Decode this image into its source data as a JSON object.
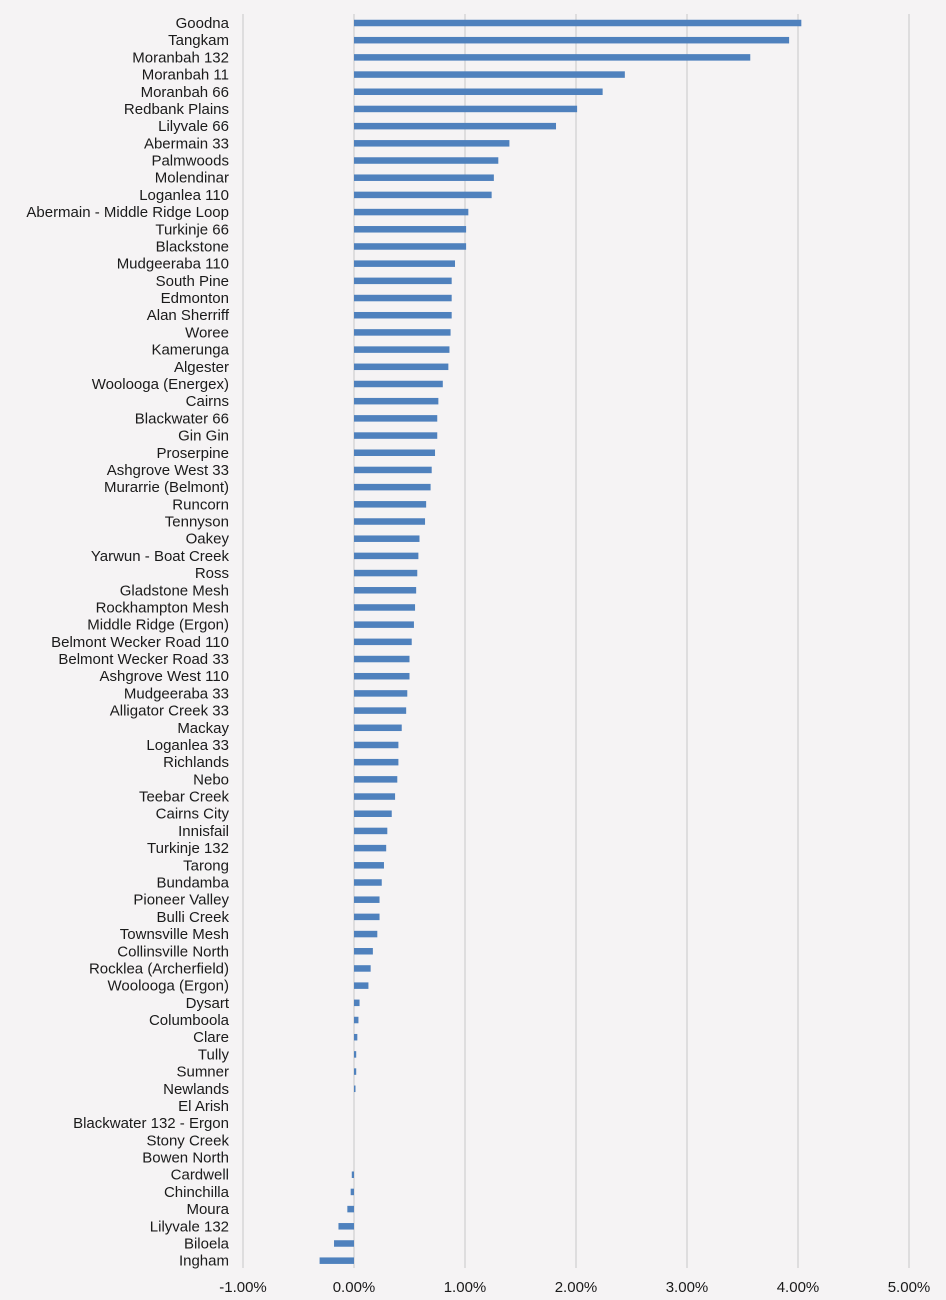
{
  "chart_data": {
    "type": "bar",
    "orientation": "horizontal",
    "title": "",
    "xlabel": "",
    "ylabel": "",
    "xlim": [
      -0.01,
      0.05
    ],
    "grid": true,
    "x_ticks": [
      -0.01,
      0.0,
      0.01,
      0.02,
      0.03,
      0.04,
      0.05
    ],
    "x_tick_labels": [
      "-1.00%",
      "0.00%",
      "1.00%",
      "2.00%",
      "3.00%",
      "4.00%",
      "5.00%"
    ],
    "categories": [
      "Goodna",
      "Tangkam",
      "Moranbah 132",
      "Moranbah 11",
      "Moranbah 66",
      "Redbank Plains",
      "Lilyvale 66",
      "Abermain 33",
      "Palmwoods",
      "Molendinar",
      "Loganlea 110",
      "Abermain - Middle Ridge Loop",
      "Turkinje 66",
      "Blackstone",
      "Mudgeeraba 110",
      "South Pine",
      "Edmonton",
      "Alan Sherriff",
      "Woree",
      "Kamerunga",
      "Algester",
      "Woolooga (Energex)",
      "Cairns",
      "Blackwater 66",
      "Gin Gin",
      "Proserpine",
      "Ashgrove West 33",
      "Murarrie (Belmont)",
      "Runcorn",
      "Tennyson",
      "Oakey",
      "Yarwun - Boat Creek",
      "Ross",
      "Gladstone Mesh",
      "Rockhampton Mesh",
      "Middle Ridge (Ergon)",
      "Belmont Wecker Road 110",
      "Belmont Wecker Road 33",
      "Ashgrove West 110",
      "Mudgeeraba 33",
      "Alligator Creek 33",
      "Mackay",
      "Loganlea 33",
      "Richlands",
      "Nebo",
      "Teebar Creek",
      "Cairns City",
      "Innisfail",
      "Turkinje 132",
      "Tarong",
      "Bundamba",
      "Pioneer Valley",
      "Bulli Creek",
      "Townsville Mesh",
      "Collinsville North",
      "Rocklea (Archerfield)",
      "Woolooga (Ergon)",
      "Dysart",
      "Columboola",
      "Clare",
      "Tully",
      "Sumner",
      "Newlands",
      "El Arish",
      "Blackwater 132 - Ergon",
      "Stony Creek",
      "Bowen North",
      "Cardwell",
      "Chinchilla",
      "Moura",
      "Lilyvale 132",
      "Biloela",
      "Ingham"
    ],
    "values": [
      0.0403,
      0.0392,
      0.0357,
      0.0244,
      0.0224,
      0.0201,
      0.0182,
      0.014,
      0.013,
      0.0126,
      0.0124,
      0.0103,
      0.0101,
      0.0101,
      0.0091,
      0.0088,
      0.0088,
      0.0088,
      0.0087,
      0.0086,
      0.0085,
      0.008,
      0.0076,
      0.0075,
      0.0075,
      0.0073,
      0.007,
      0.0069,
      0.0065,
      0.0064,
      0.0059,
      0.0058,
      0.0057,
      0.0056,
      0.0055,
      0.0054,
      0.0052,
      0.005,
      0.005,
      0.0048,
      0.0047,
      0.0043,
      0.004,
      0.004,
      0.0039,
      0.0037,
      0.0034,
      0.003,
      0.0029,
      0.0027,
      0.0025,
      0.0023,
      0.0023,
      0.0021,
      0.0017,
      0.0015,
      0.0013,
      0.0005,
      0.0004,
      0.0003,
      0.0002,
      0.0002,
      0.0001,
      0.0,
      0.0,
      0.0,
      0.0,
      -0.0002,
      -0.0003,
      -0.0006,
      -0.0014,
      -0.0018,
      -0.0031
    ]
  }
}
